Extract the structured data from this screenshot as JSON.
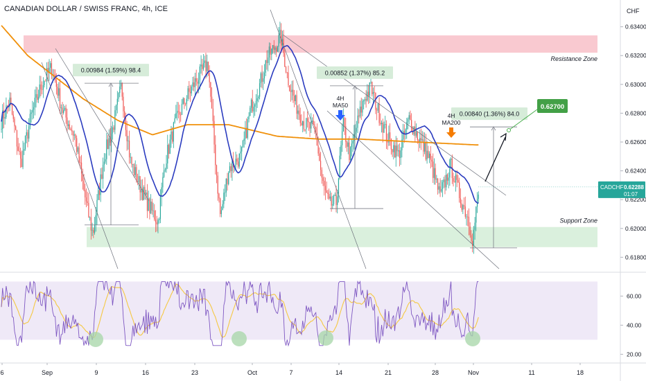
{
  "chart_data": {
    "type": "candlestick",
    "title": "CANADIAN DOLLAR / SWISS FRANC, 4h, ICE",
    "currency": "CHF",
    "price_ticks": [
      0.634,
      0.632,
      0.63,
      0.628,
      0.626,
      0.624,
      0.622,
      0.62,
      0.618
    ],
    "price_tick_labels": [
      "0.63400",
      "0.63200",
      "0.63000",
      "0.62800",
      "0.62600",
      "0.62400",
      "0.62200",
      "0.62000",
      "0.61800"
    ],
    "price_range": [
      0.6172,
      0.6348
    ],
    "date_labels": [
      "6",
      "Sep",
      "9",
      "16",
      "23",
      "Oct",
      "7",
      "14",
      "21",
      "28",
      "Nov",
      "11",
      "18"
    ],
    "current_price": {
      "symbol": "CADCHF",
      "value": "0.62288",
      "countdown": "01:07"
    },
    "zones": [
      {
        "label": "Resistance Zone",
        "low": 0.6322,
        "high": 0.6334,
        "color": "#f8bcc4"
      },
      {
        "label": "Support Zone",
        "low": 0.6187,
        "high": 0.6201,
        "color": "#cdebd2"
      }
    ],
    "measurements": [
      {
        "label": "0.00984 (1.59%) 98.4",
        "low": 0.62024,
        "high": 0.63008
      },
      {
        "label": "0.00852 (1.37%) 85.2",
        "low": 0.62138,
        "high": 0.6299
      },
      {
        "label": "0.00840 (1.36%) 84.0",
        "low": 0.61865,
        "high": 0.62705
      }
    ],
    "target": {
      "label": "0.62700",
      "value": 0.627
    },
    "ma_labels": [
      {
        "line1": "4H",
        "line2": "MA50",
        "color": "#2962ff"
      },
      {
        "line1": "4H",
        "line2": "MA200",
        "color": "#f57c00"
      }
    ],
    "series": [
      {
        "name": "MA50",
        "color": "#2a3bbf"
      },
      {
        "name": "MA200",
        "color": "#f0900a"
      }
    ],
    "candle_colors": {
      "up": "#26a69a",
      "down": "#ef5350"
    },
    "rsi": {
      "ticks": [
        60.0,
        40.0,
        20.0
      ],
      "tick_labels": [
        "60.00",
        "40.00",
        "20.00"
      ],
      "band": [
        30,
        70
      ],
      "range": [
        14,
        74
      ],
      "line_color": "#7e57c2",
      "signal_color": "#f5c842"
    }
  }
}
